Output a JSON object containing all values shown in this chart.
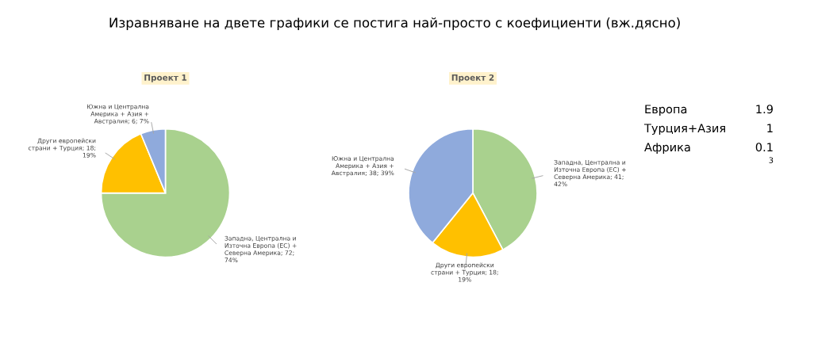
{
  "chart_data": [
    {
      "type": "pie",
      "title": "Проект 1",
      "categories": [
        "Западна, Централна и Източна Европа (ЕС) + Северна Америка",
        "Други европейски страни + Турция",
        "Южна и Централна Америка + Азия + Австралия"
      ],
      "values": [
        72,
        18,
        6
      ],
      "colors": [
        "#a9d18e",
        "#ffc000",
        "#8faadc"
      ],
      "value_labels": [
        "72; 74%",
        "18; 19%",
        "6; 7%"
      ]
    },
    {
      "type": "pie",
      "title": "Проект 2",
      "categories": [
        "Западна, Централна и Източна Европа (ЕС) + Северна Америка",
        "Други европейски страни + Турция",
        "Южна и Централна Америка + Азия + Австралия"
      ],
      "values": [
        41,
        18,
        38
      ],
      "colors": [
        "#a9d18e",
        "#ffc000",
        "#8faadc"
      ],
      "value_labels": [
        "41; 42%",
        "18; 19%",
        "38; 39%"
      ]
    },
    {
      "type": "other",
      "title": "Изравняване на двете графики се постига най-просто с коефициенти (вж.дясно)",
      "annotations": [
        "Европа",
        "1.9",
        "Турция+Азия",
        "1",
        "Африка",
        "0.1",
        "3"
      ]
    }
  ]
}
